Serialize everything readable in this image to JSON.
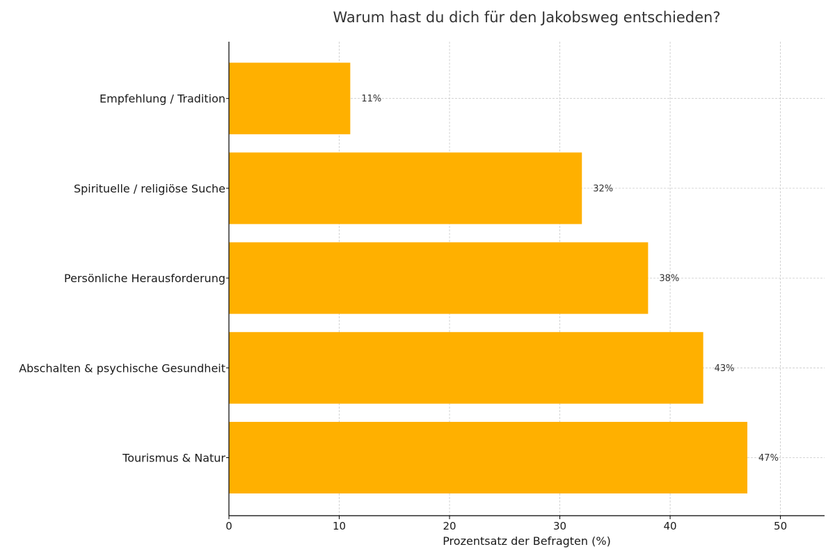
{
  "chart_data": {
    "type": "bar",
    "orientation": "horizontal",
    "title": "Warum hast du dich für den Jakobsweg entschieden?",
    "xlabel": "Prozentsatz der Befragten (%)",
    "ylabel": "",
    "categories": [
      "Tourismus & Natur",
      "Abschalten & psychische Gesundheit",
      "Persönliche Herausforderung",
      "Spirituelle / religiöse Suche",
      "Empfehlung / Tradition"
    ],
    "values": [
      47,
      43,
      38,
      32,
      11
    ],
    "data_labels": [
      "47%",
      "43%",
      "38%",
      "32%",
      "11%"
    ],
    "xlim": [
      0,
      54
    ],
    "xticks": [
      0,
      10,
      20,
      30,
      40,
      50
    ],
    "grid": true,
    "bar_color": "#FFB000"
  }
}
